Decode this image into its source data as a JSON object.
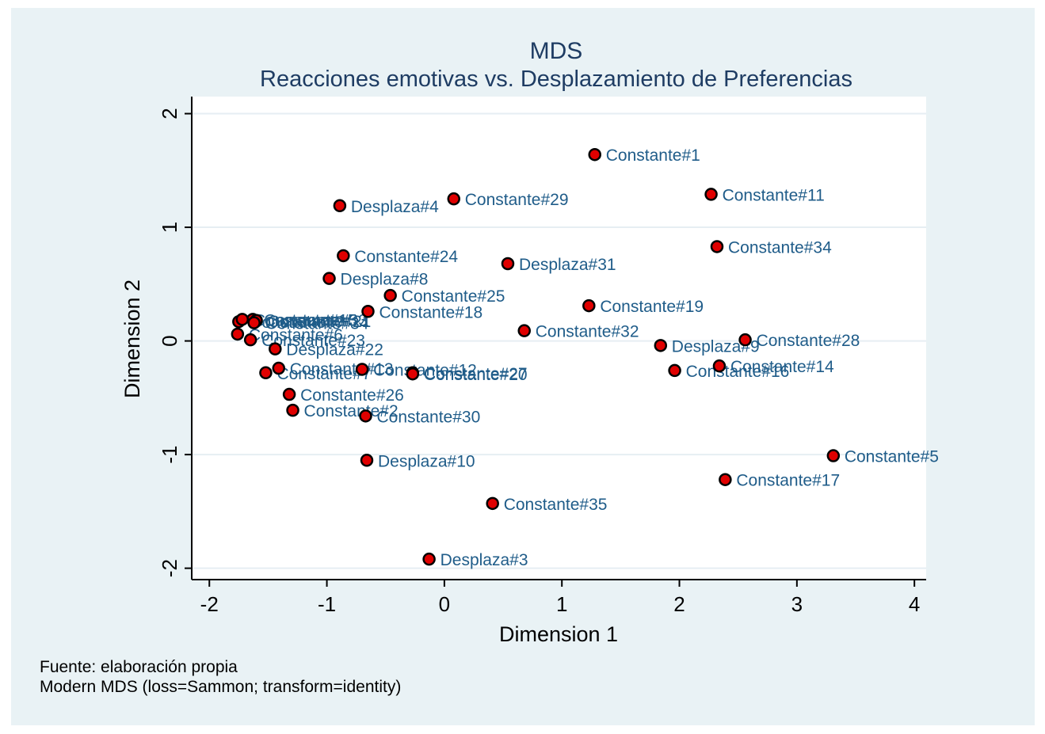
{
  "chart_data": {
    "type": "scatter",
    "title": "MDS",
    "subtitle": "Reacciones emotivas vs. Desplazamiento de Preferencias",
    "xlabel": "Dimension 1",
    "ylabel": "Dimension 2",
    "xlim": [
      -2.15,
      4.1
    ],
    "ylim": [
      -2.1,
      2.15
    ],
    "xticks": [
      -2,
      -1,
      0,
      1,
      2,
      3,
      4
    ],
    "yticks": [
      -2,
      -1,
      0,
      1,
      2
    ],
    "grid": "horizontal",
    "legend": "none",
    "marker_color": "#e00000",
    "marker_edge": "#000000",
    "label_color": "#1f5c89",
    "points": [
      {
        "label": "Constante#1",
        "x": 1.28,
        "y": 1.64
      },
      {
        "label": "Constante#11",
        "x": 2.27,
        "y": 1.29
      },
      {
        "label": "Desplaza#4",
        "x": -0.89,
        "y": 1.19
      },
      {
        "label": "Constante#29",
        "x": 0.08,
        "y": 1.25
      },
      {
        "label": "Constante#34",
        "x": 2.32,
        "y": 0.83
      },
      {
        "label": "Constante#24",
        "x": -0.86,
        "y": 0.75
      },
      {
        "label": "Desplaza#31",
        "x": 0.54,
        "y": 0.68
      },
      {
        "label": "Desplaza#8",
        "x": -0.98,
        "y": 0.55
      },
      {
        "label": "Constante#25",
        "x": -0.46,
        "y": 0.4
      },
      {
        "label": "Constante#19",
        "x": 1.23,
        "y": 0.31
      },
      {
        "label": "Constante#18",
        "x": -0.65,
        "y": 0.26
      },
      {
        "label": "Constante#32",
        "x": 0.68,
        "y": 0.09
      },
      {
        "label": "Constante#28",
        "x": 2.56,
        "y": 0.01
      },
      {
        "label": "Desplaza#9",
        "x": 1.84,
        "y": -0.04
      },
      {
        "label": "Constante#14",
        "x": 2.34,
        "y": -0.22
      },
      {
        "label": "Constante#16",
        "x": 1.96,
        "y": -0.26
      },
      {
        "label": "Constante#33",
        "x": -1.63,
        "y": 0.19
      },
      {
        "label": "Constante#7",
        "x": -1.75,
        "y": 0.17
      },
      {
        "label": "Constante#15",
        "x": -1.72,
        "y": 0.19
      },
      {
        "label": "Constante#21",
        "x": -1.6,
        "y": 0.18
      },
      {
        "label": "Constante#34b",
        "x": -1.62,
        "y": 0.16
      },
      {
        "label": "Constante#6",
        "x": -1.76,
        "y": 0.06
      },
      {
        "label": "Constante#23",
        "x": -1.65,
        "y": 0.01
      },
      {
        "label": "Desplaza#22",
        "x": -1.44,
        "y": -0.07
      },
      {
        "label": "Constante#13",
        "x": -1.41,
        "y": -0.24
      },
      {
        "label": "Constante#7b",
        "x": -1.52,
        "y": -0.28
      },
      {
        "label": "Constante#12",
        "x": -0.7,
        "y": -0.25
      },
      {
        "label": "Constante#27",
        "x": -0.27,
        "y": -0.28
      },
      {
        "label": "Constante#20",
        "x": -0.27,
        "y": -0.29
      },
      {
        "label": "Constante#26",
        "x": -1.32,
        "y": -0.47
      },
      {
        "label": "Constante#2",
        "x": -1.29,
        "y": -0.61
      },
      {
        "label": "Constante#30",
        "x": -0.67,
        "y": -0.66
      },
      {
        "label": "Desplaza#10",
        "x": -0.66,
        "y": -1.05
      },
      {
        "label": "Constante#5",
        "x": 3.31,
        "y": -1.01
      },
      {
        "label": "Constante#17",
        "x": 2.39,
        "y": -1.22
      },
      {
        "label": "Constante#35",
        "x": 0.41,
        "y": -1.43
      },
      {
        "label": "Desplaza#3",
        "x": -0.13,
        "y": -1.92
      }
    ],
    "notes": [
      "Fuente: elaboración propia",
      "Modern MDS (loss=Sammon; transform=identity)"
    ]
  }
}
